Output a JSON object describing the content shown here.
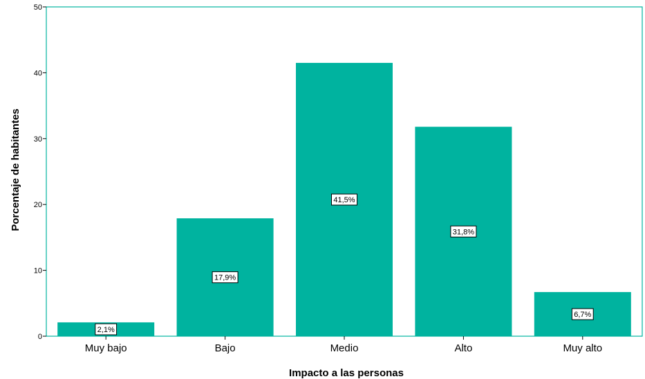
{
  "chart_data": {
    "type": "bar",
    "categories": [
      "Muy bajo",
      "Bajo",
      "Medio",
      "Alto",
      "Muy alto"
    ],
    "values": [
      2.1,
      17.9,
      41.5,
      31.8,
      6.7
    ],
    "data_labels": [
      "2,1%",
      "17,9%",
      "41,5%",
      "31,8%",
      "6,7%"
    ],
    "xlabel": "Impacto a las personas",
    "ylabel": "Porcentaje de habitantes",
    "ylim": [
      0,
      50
    ],
    "yticks": [
      0,
      10,
      20,
      30,
      40,
      50
    ],
    "grid": false,
    "colors": {
      "bar": "#00b39f",
      "frame": "#00b39f"
    }
  }
}
